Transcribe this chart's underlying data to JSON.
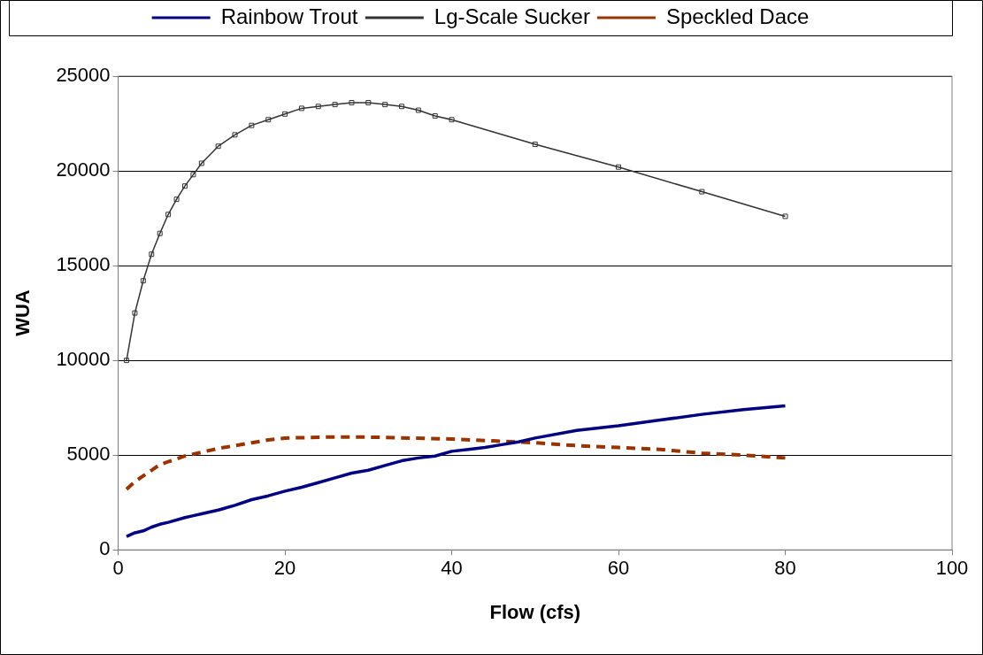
{
  "chart_data": {
    "type": "line",
    "xlabel": "Flow (cfs)",
    "ylabel": "WUA",
    "xlim": [
      0,
      100
    ],
    "xticks": [
      0,
      20,
      40,
      60,
      80,
      100
    ],
    "ylim": [
      0,
      25000
    ],
    "yticks": [
      0,
      5000,
      10000,
      15000,
      20000,
      25000
    ],
    "grid": "y",
    "legend": "top",
    "series": [
      {
        "name": "Rainbow Trout",
        "color": "#000080",
        "marker": "none",
        "line_style": "solid",
        "x": [
          1,
          2,
          3,
          4,
          5,
          6,
          8,
          9,
          10,
          12,
          14,
          16,
          18,
          20,
          22,
          24,
          26,
          28,
          30,
          32,
          34,
          36,
          38,
          40,
          42,
          44,
          46,
          48,
          50,
          55,
          60,
          65,
          70,
          75,
          80
        ],
        "values": [
          700,
          900,
          1000,
          1200,
          1350,
          1450,
          1700,
          1800,
          1900,
          2100,
          2350,
          2650,
          2850,
          3100,
          3300,
          3550,
          3800,
          4050,
          4200,
          4450,
          4700,
          4850,
          4950,
          5200,
          5300,
          5400,
          5550,
          5700,
          5900,
          6300,
          6550,
          6850,
          7150,
          7400,
          7600
        ]
      },
      {
        "name": "Lg-Scale Sucker",
        "color": "#333333",
        "marker": "square",
        "line_style": "solid",
        "x": [
          1,
          2,
          3,
          4,
          5,
          6,
          7,
          8,
          9,
          10,
          12,
          14,
          16,
          18,
          20,
          22,
          24,
          26,
          28,
          30,
          32,
          34,
          36,
          38,
          40,
          50,
          60,
          70,
          80
        ],
        "values": [
          10000,
          12500,
          14200,
          15600,
          16700,
          17700,
          18500,
          19200,
          19800,
          20400,
          21300,
          21900,
          22400,
          22700,
          23000,
          23300,
          23400,
          23500,
          23600,
          23600,
          23500,
          23400,
          23200,
          22900,
          22700,
          21400,
          20200,
          18900,
          17600
        ]
      },
      {
        "name": "Speckled Dace",
        "color": "#993300",
        "marker": "none",
        "line_style": "dashed",
        "x": [
          1,
          2,
          3,
          4,
          5,
          6,
          8,
          10,
          12,
          14,
          16,
          18,
          20,
          25,
          30,
          35,
          40,
          45,
          50,
          55,
          60,
          65,
          70,
          75,
          80
        ],
        "values": [
          3200,
          3600,
          3900,
          4200,
          4500,
          4650,
          4950,
          5150,
          5350,
          5500,
          5650,
          5800,
          5900,
          5950,
          5950,
          5900,
          5850,
          5750,
          5650,
          5500,
          5400,
          5300,
          5100,
          5000,
          4850
        ]
      }
    ]
  }
}
